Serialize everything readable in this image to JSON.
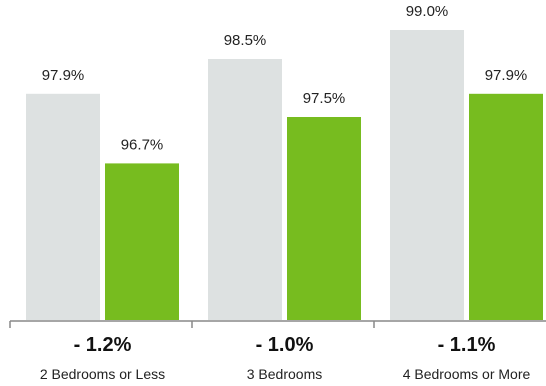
{
  "chart_data": {
    "type": "bar",
    "categories": [
      "2 Bedrooms or Less",
      "3 Bedrooms",
      "4 Bedrooms or More"
    ],
    "series": [
      {
        "values": [
          97.9,
          98.5,
          99.0
        ],
        "value_labels": [
          "97.9%",
          "98.5%",
          "99.0%"
        ],
        "color": "#dde1e1"
      },
      {
        "values": [
          96.7,
          97.5,
          97.9
        ],
        "value_labels": [
          "96.7%",
          "97.5%",
          "97.9%"
        ],
        "color": "#77bc1f"
      }
    ],
    "changes": [
      "- 1.2%",
      "- 1.0%",
      "- 1.1%"
    ],
    "ylim": [
      94,
      99
    ],
    "grid": false,
    "legend": "none",
    "axis_color": "#888888"
  }
}
